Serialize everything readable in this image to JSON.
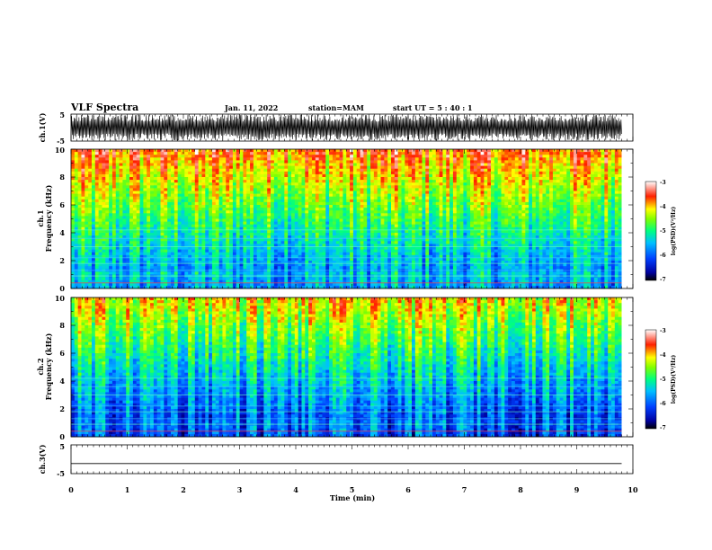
{
  "header": {
    "title": "VLF Spectra",
    "date": "Jan. 11, 2022",
    "station": "station=MAM",
    "start": "start  UT =  5 : 40 : 1"
  },
  "chart_data": [
    {
      "type": "line",
      "panel": "ch1_waveform",
      "ylabel": "ch.1(V)",
      "ylim": [
        -5,
        5
      ],
      "yticks": [
        "5",
        "-5"
      ],
      "description_level": "dense oscillating waveform"
    },
    {
      "type": "heatmap",
      "panel": "ch1_spectrogram",
      "ylabel_line1": "ch.1",
      "ylabel_line2": "Frequency (kHz)",
      "ylim": [
        0,
        10
      ],
      "yticks": [
        "0",
        "2",
        "4",
        "6",
        "8",
        "10"
      ],
      "xlim": [
        0,
        10
      ],
      "colorbar": {
        "label": "log(PSD)(V²/Hz)",
        "range": [
          -7,
          -3
        ],
        "ticks": [
          "-3",
          "-4",
          "-5",
          "-6",
          "-7"
        ]
      }
    },
    {
      "type": "heatmap",
      "panel": "ch2_spectrogram",
      "ylabel_line1": "ch.2",
      "ylabel_line2": "Frequency (kHz)",
      "ylim": [
        0,
        10
      ],
      "yticks": [
        "0",
        "2",
        "4",
        "6",
        "8",
        "10"
      ],
      "xlim": [
        0,
        10
      ],
      "colorbar": {
        "label": "log(PSD)(V²/Hz)",
        "range": [
          -7,
          -3
        ],
        "ticks": [
          "-3",
          "-4",
          "-5",
          "-6",
          "-7"
        ]
      }
    },
    {
      "type": "line",
      "panel": "ch3_waveform",
      "ylabel": "ch.3(V)",
      "ylim": [
        -5,
        5
      ],
      "yticks": [
        "5",
        "-5"
      ],
      "series": [
        {
          "x": [
            0,
            9.8
          ],
          "y": [
            -1.5,
            -1.5
          ]
        }
      ]
    }
  ],
  "xaxis": {
    "label": "Time (min)",
    "ticks": [
      "0",
      "1",
      "2",
      "3",
      "4",
      "5",
      "6",
      "7",
      "8",
      "9",
      "10"
    ],
    "data_end": 9.8
  },
  "colors": {
    "scale": [
      "#000080",
      "#0000ff",
      "#00a0ff",
      "#00ffff",
      "#00ff80",
      "#80ff00",
      "#ffff00",
      "#ffa000",
      "#ff0000",
      "#ffffff"
    ]
  }
}
